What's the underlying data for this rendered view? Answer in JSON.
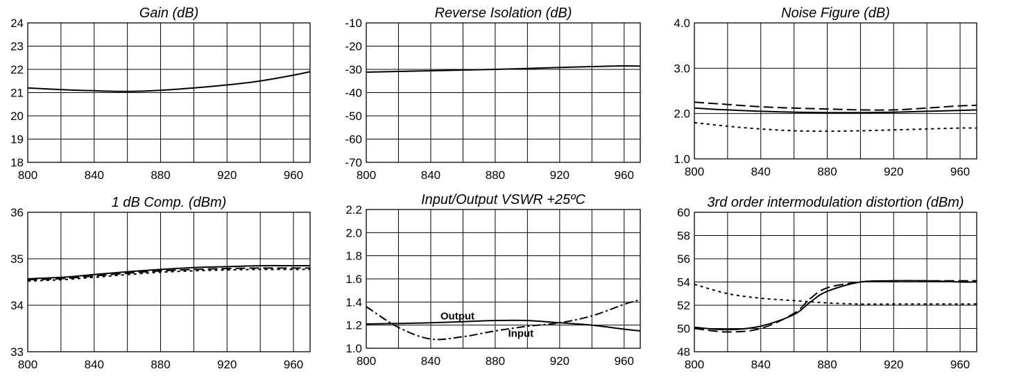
{
  "chart_data": [
    {
      "type": "line",
      "title": "Gain (dB)",
      "xlim": [
        800,
        970
      ],
      "ylim": [
        18,
        24
      ],
      "x_ticks": [
        800,
        840,
        880,
        920,
        960
      ],
      "y_ticks": [
        18,
        19,
        20,
        21,
        22,
        23,
        24
      ],
      "grid": true,
      "series": [
        {
          "style": "solid",
          "x": [
            800,
            820,
            840,
            860,
            880,
            900,
            920,
            940,
            960,
            970
          ],
          "y": [
            21.2,
            21.13,
            21.08,
            21.05,
            21.1,
            21.2,
            21.33,
            21.5,
            21.75,
            21.9
          ]
        }
      ]
    },
    {
      "type": "line",
      "title": "Reverse Isolation (dB)",
      "xlim": [
        800,
        970
      ],
      "ylim": [
        -70,
        -10
      ],
      "x_ticks": [
        800,
        840,
        880,
        920,
        960
      ],
      "y_ticks": [
        -10,
        -20,
        -30,
        -40,
        -50,
        -60,
        -70
      ],
      "grid": true,
      "series": [
        {
          "style": "solid",
          "x": [
            800,
            820,
            840,
            860,
            880,
            900,
            920,
            940,
            960,
            970
          ],
          "y": [
            -31.2,
            -30.9,
            -30.6,
            -30.3,
            -30.0,
            -29.6,
            -29.2,
            -28.8,
            -28.5,
            -28.6
          ]
        }
      ]
    },
    {
      "type": "line",
      "title": "Noise Figure (dB)",
      "xlim": [
        800,
        970
      ],
      "ylim": [
        1.0,
        4.0
      ],
      "x_ticks": [
        800,
        840,
        880,
        920,
        960
      ],
      "y_ticks": [
        "1.0",
        "2.0",
        "3.0",
        "4.0"
      ],
      "y_tick_values": [
        1.0,
        2.0,
        3.0,
        4.0
      ],
      "grid": true,
      "series": [
        {
          "style": "solid",
          "x": [
            800,
            820,
            840,
            860,
            880,
            900,
            920,
            940,
            960,
            970
          ],
          "y": [
            2.12,
            2.08,
            2.05,
            2.03,
            2.02,
            2.02,
            2.03,
            2.05,
            2.07,
            2.08
          ]
        },
        {
          "style": "long-dash",
          "x": [
            800,
            820,
            840,
            860,
            880,
            900,
            920,
            940,
            960,
            970
          ],
          "y": [
            2.25,
            2.2,
            2.15,
            2.12,
            2.1,
            2.08,
            2.08,
            2.12,
            2.17,
            2.18
          ]
        },
        {
          "style": "short-dash",
          "x": [
            800,
            820,
            840,
            860,
            880,
            900,
            920,
            940,
            960,
            970
          ],
          "y": [
            1.8,
            1.72,
            1.66,
            1.62,
            1.61,
            1.62,
            1.64,
            1.66,
            1.68,
            1.68
          ]
        }
      ]
    },
    {
      "type": "line",
      "title": "1 dB Comp. (dBm)",
      "xlim": [
        800,
        970
      ],
      "ylim": [
        33,
        36
      ],
      "x_ticks": [
        800,
        840,
        880,
        920,
        960
      ],
      "y_ticks": [
        33,
        34,
        35,
        36
      ],
      "grid": true,
      "series": [
        {
          "style": "solid",
          "x": [
            800,
            820,
            840,
            860,
            880,
            900,
            920,
            940,
            960,
            970
          ],
          "y": [
            34.57,
            34.6,
            34.66,
            34.72,
            34.77,
            34.81,
            34.83,
            34.85,
            34.85,
            34.85
          ]
        },
        {
          "style": "long-dash",
          "x": [
            800,
            820,
            840,
            860,
            880,
            900,
            920,
            940,
            960,
            970
          ],
          "y": [
            34.55,
            34.57,
            34.63,
            34.69,
            34.74,
            34.77,
            34.79,
            34.8,
            34.8,
            34.8
          ]
        },
        {
          "style": "short-dash",
          "x": [
            800,
            820,
            840,
            860,
            880,
            900,
            920,
            940,
            960,
            970
          ],
          "y": [
            34.52,
            34.55,
            34.6,
            34.66,
            34.71,
            34.74,
            34.76,
            34.77,
            34.77,
            34.77
          ]
        }
      ]
    },
    {
      "type": "line",
      "title": "Input/Output VSWR +25ºC",
      "xlim": [
        800,
        970
      ],
      "ylim": [
        1.0,
        2.2
      ],
      "x_ticks": [
        800,
        840,
        880,
        920,
        960
      ],
      "y_ticks": [
        "1.0",
        "1.2",
        "1.4",
        "1.6",
        "1.8",
        "2.0",
        "2.2"
      ],
      "y_tick_values": [
        1.0,
        1.2,
        1.4,
        1.6,
        1.8,
        2.0,
        2.2
      ],
      "grid": true,
      "annotations": [
        "Output",
        "Input"
      ],
      "series": [
        {
          "style": "solid",
          "label": "Output",
          "x": [
            800,
            820,
            840,
            860,
            880,
            900,
            920,
            940,
            960,
            970
          ],
          "y": [
            1.21,
            1.215,
            1.22,
            1.23,
            1.24,
            1.24,
            1.22,
            1.2,
            1.165,
            1.15
          ]
        },
        {
          "style": "dash-dot",
          "label": "Input",
          "x": [
            800,
            820,
            840,
            860,
            880,
            900,
            920,
            940,
            960,
            970
          ],
          "y": [
            1.36,
            1.18,
            1.08,
            1.1,
            1.15,
            1.19,
            1.22,
            1.28,
            1.38,
            1.42
          ]
        }
      ]
    },
    {
      "type": "line",
      "title": "3rd order intermodulation distortion (dBm)",
      "xlim": [
        800,
        970
      ],
      "ylim": [
        48,
        60
      ],
      "x_ticks": [
        800,
        840,
        880,
        920,
        960
      ],
      "y_ticks": [
        48,
        50,
        52,
        54,
        56,
        58,
        60
      ],
      "grid": true,
      "series": [
        {
          "style": "solid",
          "x": [
            800,
            820,
            840,
            860,
            870,
            880,
            900,
            920,
            940,
            960,
            970
          ],
          "y": [
            50.1,
            49.9,
            50.2,
            51.2,
            52.3,
            53.2,
            54.0,
            54.1,
            54.1,
            54.0,
            54.0
          ]
        },
        {
          "style": "long-dash",
          "x": [
            800,
            820,
            840,
            860,
            870,
            880,
            900,
            920,
            940,
            960,
            970
          ],
          "y": [
            50.0,
            49.7,
            50.0,
            51.3,
            52.6,
            53.5,
            54.0,
            54.1,
            54.1,
            54.1,
            54.1
          ]
        },
        {
          "style": "short-dash",
          "x": [
            800,
            820,
            840,
            860,
            880,
            900,
            920,
            940,
            960,
            970
          ],
          "y": [
            53.8,
            53.0,
            52.6,
            52.4,
            52.2,
            52.1,
            52.1,
            52.1,
            52.1,
            52.1
          ]
        }
      ]
    }
  ]
}
